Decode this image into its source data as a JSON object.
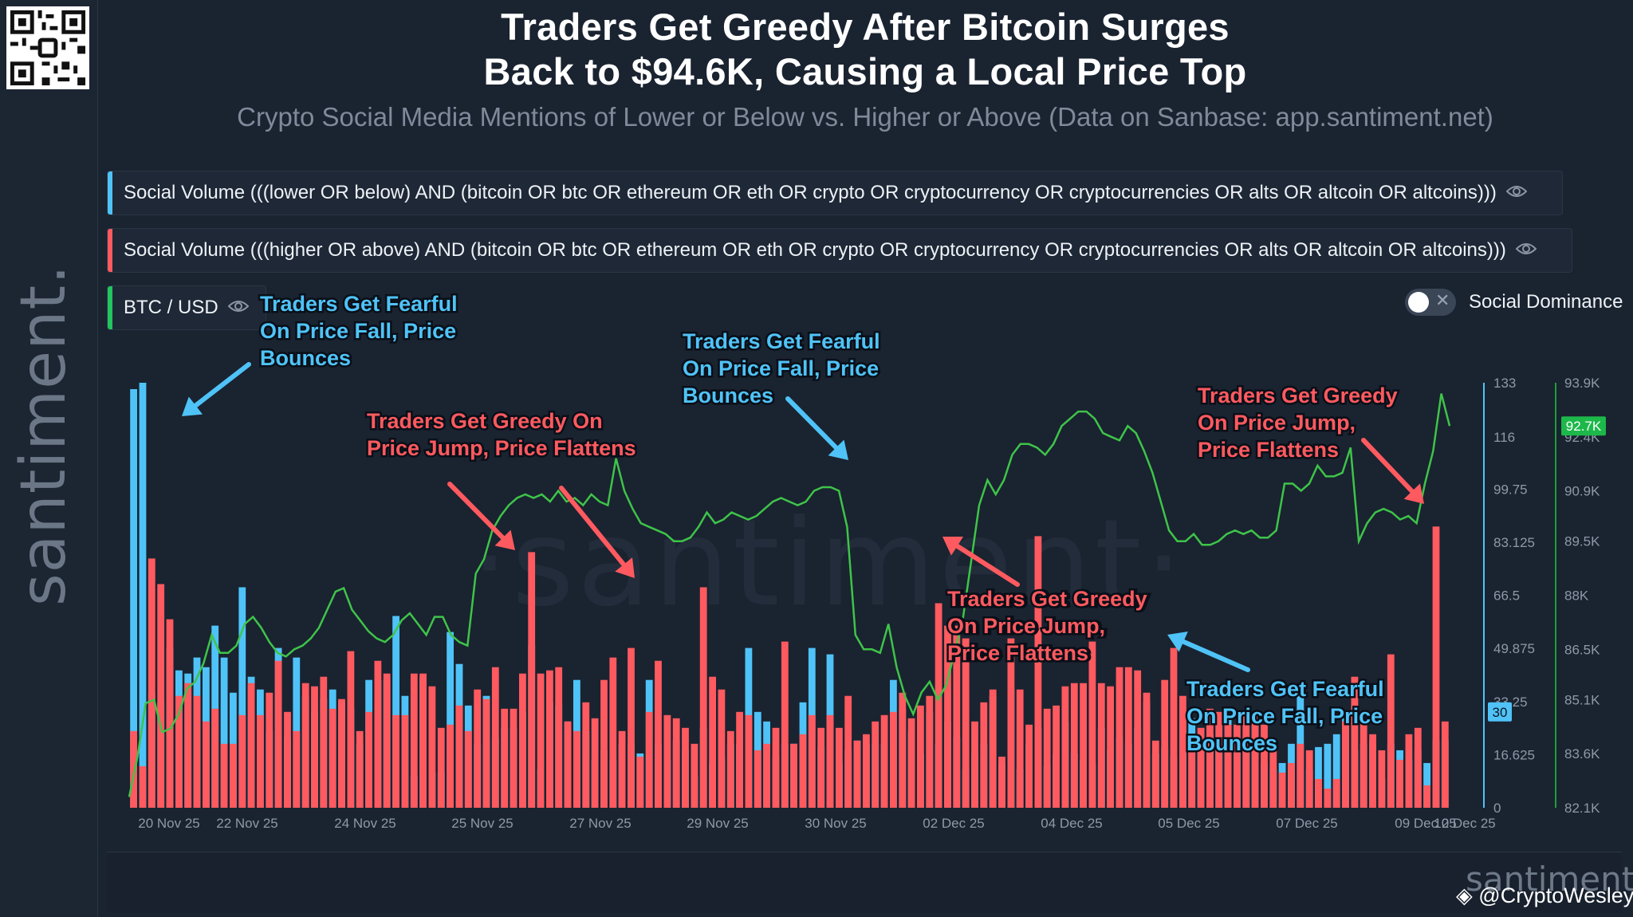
{
  "title_line1": "Traders Get Greedy After Bitcoin Surges",
  "title_line2": "Back to $94.6K, Causing a Local Price Top",
  "subtitle": "Crypto Social Media Mentions of Lower or Below vs. Higher or Above (Data on Sanbase: app.santiment.net)",
  "brand": "santiment.",
  "watermark": "·santiment·",
  "nav_brand": "santiment.",
  "credit": "@CryptoWesley",
  "legend": [
    {
      "label": "Social Volume (((lower OR below) AND (bitcoin OR btc OR ethereum OR eth OR crypto OR cryptocurrency OR cryptocurrencies OR alts OR altcoin OR altcoins)))",
      "color": "#4fc3f7",
      "icon": "eye-icon"
    },
    {
      "label": "Social Volume (((higher OR above) AND (bitcoin OR btc OR ethereum OR eth OR crypto OR cryptocurrency OR cryptocurrencies OR alts OR altcoin OR altcoins)))",
      "color": "#ff5a5f",
      "icon": "eye-icon"
    },
    {
      "label": "BTC / USD",
      "color": "#22c55e",
      "icon": "eye-icon"
    }
  ],
  "toggle": {
    "label": "Social Dominance",
    "on": false
  },
  "colors": {
    "lower": "#4fc3f7",
    "higher": "#ff5a5f",
    "price": "#3ec449",
    "axis_price": "#1f9e3a"
  },
  "chart_data": {
    "type": "bar",
    "x_ticks": [
      "20 Nov 25",
      "22 Nov 25",
      "24 Nov 25",
      "25 Nov 25",
      "27 Nov 25",
      "29 Nov 25",
      "30 Nov 25",
      "02 Dec 25",
      "04 Dec 25",
      "05 Dec 25",
      "07 Dec 25",
      "09 Dec 25",
      "10 Dec 25"
    ],
    "y_left_ticks": [
      "0",
      "16.625",
      "33.25",
      "49.875",
      "66.5",
      "83.125",
      "99.75",
      "116",
      "133"
    ],
    "y_left_range": [
      0,
      133
    ],
    "y_right_ticks": [
      "82.1K",
      "83.6K",
      "85.1K",
      "86.5K",
      "88K",
      "89.5K",
      "90.9K",
      "92.4K",
      "93.9K"
    ],
    "y_right_range": [
      82.1,
      93.9
    ],
    "left_badge": "30",
    "price_badge": "92.7K",
    "series": [
      {
        "name": "Social Volume (((lower OR below) AND (bitcoin OR btc OR ethereum OR eth OR crypto OR cryptocurrency OR cryptocurrencies OR alts OR altcoin OR altcoins)))",
        "kind": "bar",
        "values": [
          131,
          133,
          36,
          33,
          50,
          43,
          42,
          47,
          44,
          57,
          47,
          36,
          69,
          41,
          37,
          24,
          50,
          22,
          47,
          35,
          30,
          34,
          37,
          33,
          31,
          20,
          40,
          40,
          40,
          60,
          35,
          10,
          41,
          11,
          11,
          55,
          45,
          32,
          20,
          35,
          22,
          25,
          25,
          30,
          51,
          12,
          33,
          32,
          27,
          40,
          24,
          15,
          18,
          15,
          20,
          20,
          17,
          40,
          20,
          15,
          21,
          18,
          10,
          25,
          14,
          16,
          20,
          20,
          50,
          30,
          27,
          16,
          20,
          20,
          33,
          50,
          19,
          48,
          14,
          18,
          21,
          20,
          20,
          20,
          40,
          31,
          24,
          17,
          30,
          20,
          27,
          22,
          12,
          17,
          20,
          35,
          14,
          37,
          12,
          20,
          25,
          13,
          17,
          27,
          17,
          15,
          14,
          25,
          18,
          22,
          20,
          25,
          33,
          17,
          19,
          16,
          20,
          28,
          20,
          23,
          20,
          29,
          20,
          22,
          26,
          14,
          12,
          14,
          20,
          36,
          12,
          19,
          20,
          23,
          28,
          18,
          20,
          21,
          9,
          20,
          18,
          15,
          18,
          14,
          21,
          21
        ]
      },
      {
        "name": "Social Volume (((higher OR above) AND (bitcoin OR btc OR ethereum OR eth OR crypto OR cryptocurrency OR cryptocurrencies OR alts OR altcoin OR altcoins)))",
        "kind": "bar",
        "values": [
          24,
          13,
          78,
          70,
          59,
          35,
          39,
          35,
          27,
          31,
          20,
          20,
          29,
          39,
          29,
          36,
          46,
          30,
          24,
          39,
          38,
          41,
          31,
          34,
          49,
          24,
          30,
          46,
          42,
          29,
          29,
          42,
          42,
          38,
          25,
          26,
          32,
          24,
          37,
          34,
          44,
          31,
          31,
          42,
          80,
          42,
          43,
          44,
          27,
          24,
          33,
          28,
          40,
          47,
          24,
          50,
          16,
          30,
          46,
          29,
          28,
          25,
          20,
          69,
          41,
          37,
          24,
          30,
          29,
          18,
          20,
          25,
          52,
          20,
          23,
          29,
          25,
          29,
          25,
          35,
          21,
          23,
          27,
          29,
          30,
          36,
          28,
          32,
          35,
          64,
          57,
          57,
          53,
          27,
          33,
          37,
          16,
          53,
          37,
          26,
          85,
          31,
          32,
          38,
          39,
          39,
          52,
          39,
          38,
          44,
          44,
          43,
          36,
          21,
          40,
          50,
          35,
          18,
          25,
          31,
          30,
          26,
          26,
          30,
          29,
          26,
          21,
          11,
          14,
          20,
          18,
          9,
          6,
          9,
          27,
          41,
          27,
          23,
          18,
          48,
          15,
          23,
          25,
          7,
          88,
          27
        ]
      },
      {
        "name": "BTC / USD",
        "kind": "line",
        "values": [
          82.4,
          83.5,
          85.0,
          85.1,
          84.2,
          84.3,
          84.7,
          85.4,
          85.6,
          86.1,
          86.9,
          86.4,
          86.4,
          86.6,
          87.2,
          87.4,
          87.1,
          86.7,
          86.4,
          86.3,
          86.5,
          86.6,
          86.8,
          87.1,
          87.6,
          88.1,
          88.2,
          87.6,
          87.3,
          87.0,
          86.8,
          86.7,
          86.9,
          87.3,
          87.5,
          87.2,
          86.9,
          87.4,
          87.4,
          86.9,
          86.7,
          86.6,
          88.6,
          89.0,
          89.8,
          90.2,
          90.5,
          90.7,
          90.8,
          90.7,
          90.8,
          90.6,
          90.9,
          90.6,
          90.7,
          90.5,
          90.8,
          90.6,
          90.5,
          91.8,
          90.9,
          90.4,
          90.0,
          89.9,
          89.8,
          89.7,
          89.5,
          89.5,
          89.6,
          89.9,
          90.3,
          90.0,
          90.1,
          90.3,
          90.2,
          90.1,
          90.2,
          90.4,
          90.6,
          90.7,
          90.6,
          90.5,
          90.6,
          90.9,
          91.0,
          91.0,
          90.9,
          89.9,
          86.9,
          86.5,
          86.5,
          86.4,
          87.2,
          86.0,
          85.2,
          84.7,
          85.3,
          85.6,
          85.1,
          85.5,
          86.4,
          87.3,
          88.9,
          90.5,
          91.2,
          90.8,
          91.2,
          91.9,
          92.2,
          92.2,
          92.1,
          91.9,
          92.2,
          92.7,
          92.9,
          93.1,
          93.1,
          92.9,
          92.5,
          92.4,
          92.3,
          92.7,
          92.5,
          92.0,
          91.4,
          90.6,
          89.8,
          89.5,
          89.5,
          89.7,
          89.4,
          89.4,
          89.5,
          89.7,
          89.8,
          89.7,
          89.8,
          89.6,
          89.6,
          89.8,
          91.1,
          91.1,
          90.9,
          91.1,
          91.6,
          91.3,
          91.3,
          91.4,
          92.1,
          89.5,
          90.0,
          90.3,
          90.4,
          90.3,
          90.1,
          90.2,
          90.0,
          91.1,
          92.0,
          93.6,
          92.7
        ]
      }
    ],
    "annotations": [
      {
        "text": [
          "Traders Get Fearful",
          "On Price Fall, Price",
          "Bounces"
        ],
        "color": "blue",
        "target_bar": 5
      },
      {
        "text": [
          "Traders Get Greedy On",
          "Price Jump, Price Flattens"
        ],
        "color": "red",
        "target_bar": 44
      },
      {
        "text": [
          "Traders Get Fearful",
          "On Price Fall, Price",
          "Bounces"
        ],
        "color": "blue",
        "target_bar": 84
      },
      {
        "text": [
          "Traders Get Greedy",
          "On Price Jump,",
          "Price Flattens"
        ],
        "color": "red",
        "target_bar": 88
      },
      {
        "text": [
          "Traders Get Greedy",
          "On Price Jump,",
          "Price Flattens"
        ],
        "color": "red",
        "target_bar": 103
      },
      {
        "text": [
          "Traders Get Fearful",
          "On Price Fall, Price",
          "Bounces"
        ],
        "color": "blue",
        "target_bar": 110
      },
      {
        "text": [
          "Traders Get Greedy",
          "On Price Jump,",
          "Price Flattens"
        ],
        "color": "red",
        "target_bar": 144
      }
    ]
  }
}
